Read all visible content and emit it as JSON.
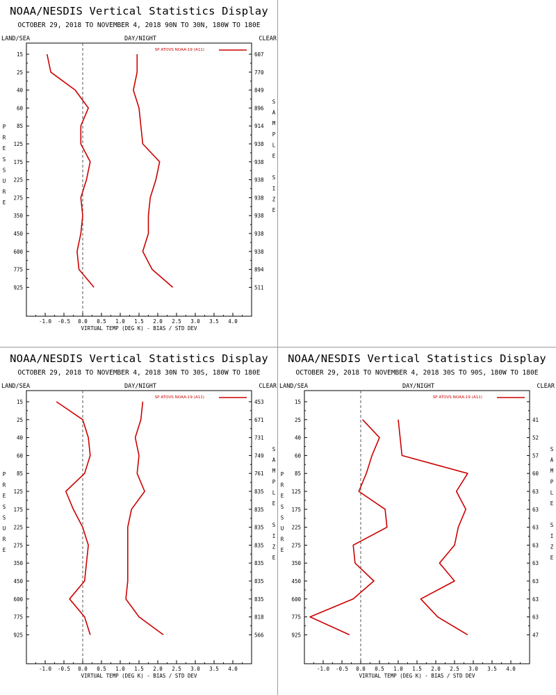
{
  "common": {
    "title": "NOAA/NESDIS Vertical Statistics Display",
    "header_left": "LAND/SEA",
    "header_mid": "DAY/NIGHT",
    "header_right": "CLEAR",
    "y_axis_label": "PRESSURE",
    "right_axis_label": "SAMPLE SIZE",
    "x_axis_label": "VIRTUAL TEMP (DEG K) - BIAS / STD DEV",
    "legend": "SP ATOVS NOAA-19 (A11)",
    "line_color": "#cc0000",
    "zero_line_color": "#555555"
  },
  "chart_data": [
    {
      "type": "line",
      "subtitle": "OCTOBER 29, 2018 TO NOVEMBER 4, 2018  90N TO 30N, 180W TO 180E",
      "pressure_levels": [
        15,
        25,
        40,
        60,
        85,
        125,
        175,
        225,
        275,
        350,
        450,
        600,
        775,
        925
      ],
      "xlim": [
        -1.5,
        4.5
      ],
      "x_ticks": [
        "-1.0",
        "-0.5",
        "0.0",
        "0.5",
        "1.0",
        "1.5",
        "2.0",
        "2.5",
        "3.0",
        "3.5",
        "4.0"
      ],
      "series": [
        {
          "values": [
            -0.95,
            -0.85,
            -0.2,
            0.15,
            -0.05,
            -0.05,
            0.2,
            0.1,
            -0.05,
            0.0,
            -0.05,
            -0.15,
            -0.1,
            0.3
          ]
        },
        {
          "values": [
            1.45,
            1.45,
            1.35,
            1.5,
            1.55,
            1.6,
            2.05,
            1.95,
            1.8,
            1.75,
            1.75,
            1.6,
            1.85,
            2.4
          ]
        }
      ],
      "sample_size": [
        "607",
        "770",
        "849",
        "896",
        "914",
        "938",
        "938",
        "938",
        "938",
        "938",
        "938",
        "938",
        "894",
        "511"
      ]
    },
    {
      "type": "line",
      "subtitle": "OCTOBER 29, 2018 TO NOVEMBER 4, 2018  30N TO 30S, 180W TO 180E",
      "pressure_levels": [
        15,
        25,
        40,
        60,
        85,
        125,
        175,
        225,
        275,
        350,
        450,
        600,
        775,
        925
      ],
      "xlim": [
        -1.5,
        4.5
      ],
      "x_ticks": [
        "-1.0",
        "-0.5",
        "0.0",
        "0.5",
        "1.0",
        "1.5",
        "2.0",
        "2.5",
        "3.0",
        "3.5",
        "4.0"
      ],
      "series": [
        {
          "values": [
            -0.7,
            0.0,
            0.15,
            0.2,
            0.05,
            -0.45,
            -0.25,
            0.0,
            0.15,
            0.1,
            0.05,
            -0.35,
            0.05,
            0.2
          ]
        },
        {
          "values": [
            1.6,
            1.55,
            1.4,
            1.5,
            1.45,
            1.65,
            1.3,
            1.2,
            1.2,
            1.2,
            1.2,
            1.15,
            1.5,
            2.15
          ]
        }
      ],
      "sample_size": [
        "453",
        "671",
        "731",
        "749",
        "761",
        "835",
        "835",
        "835",
        "835",
        "835",
        "835",
        "835",
        "818",
        "566"
      ]
    },
    {
      "type": "line",
      "subtitle": "OCTOBER 29, 2018 TO NOVEMBER 4, 2018  30S TO 90S, 180W TO 180E",
      "pressure_levels": [
        15,
        25,
        40,
        60,
        85,
        125,
        175,
        225,
        275,
        350,
        450,
        600,
        775,
        925
      ],
      "xlim": [
        -1.5,
        4.5
      ],
      "x_ticks": [
        "-1.0",
        "-0.5",
        "0.0",
        "0.5",
        "1.0",
        "1.5",
        "2.0",
        "2.5",
        "3.0",
        "3.5",
        "4.0"
      ],
      "series": [
        {
          "values": [
            null,
            0.05,
            0.5,
            0.3,
            0.15,
            -0.05,
            0.65,
            0.7,
            -0.2,
            -0.15,
            0.35,
            -0.2,
            -1.35,
            -0.3
          ]
        },
        {
          "values": [
            null,
            1.0,
            1.05,
            1.1,
            2.85,
            2.55,
            2.8,
            2.6,
            2.5,
            2.1,
            2.5,
            1.6,
            2.05,
            2.85
          ]
        }
      ],
      "sample_size": [
        "",
        "41",
        "52",
        "57",
        "60",
        "63",
        "63",
        "63",
        "63",
        "63",
        "63",
        "63",
        "63",
        "47"
      ]
    }
  ]
}
